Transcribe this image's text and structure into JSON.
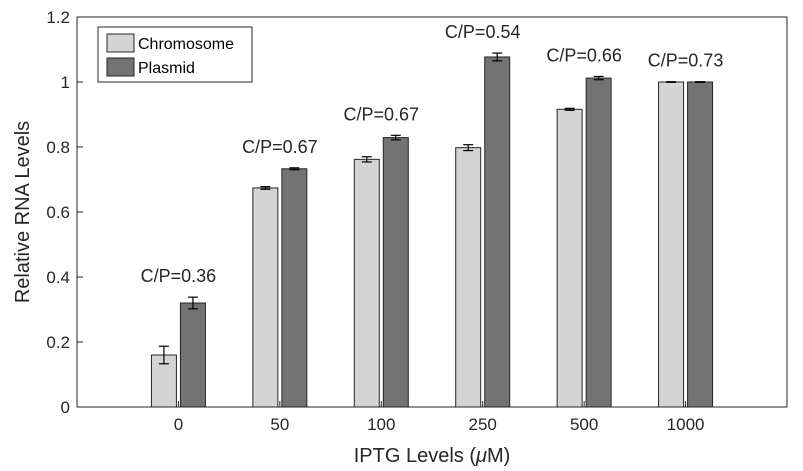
{
  "chart_data": {
    "type": "bar",
    "title": "",
    "xlabel": "IPTG Levels (",
    "xlabel_mu": "μ",
    "xlabel_suffix": "M)",
    "ylabel": "Relative RNA Levels",
    "categories": [
      "0",
      "50",
      "100",
      "250",
      "500",
      "1000"
    ],
    "ylim": [
      0,
      1.2
    ],
    "yticks": [
      0,
      0.2,
      0.4,
      0.6,
      0.8,
      1,
      1.2
    ],
    "ytick_labels": [
      "0",
      "0.2",
      "0.4",
      "0.6",
      "0.8",
      "1",
      "1.2"
    ],
    "series": [
      {
        "name": "Chromosome",
        "color": "#d4d4d4",
        "values": [
          0.16,
          0.674,
          0.762,
          0.798,
          0.916,
          1.0
        ],
        "errors": [
          0.027,
          0.004,
          0.008,
          0.009,
          0.003,
          0.001
        ]
      },
      {
        "name": "Plasmid",
        "color": "#737373",
        "values": [
          0.32,
          0.733,
          0.829,
          1.077,
          1.012,
          1.0
        ],
        "errors": [
          0.018,
          0.003,
          0.007,
          0.012,
          0.005,
          0.001
        ]
      }
    ],
    "annotations": [
      "C/P=0.36",
      "C/P=0.67",
      "C/P=0.67",
      "C/P=0.54",
      "C/P=0.66",
      "C/P=0.73"
    ],
    "legend_position": "top-left",
    "grid": false
  }
}
